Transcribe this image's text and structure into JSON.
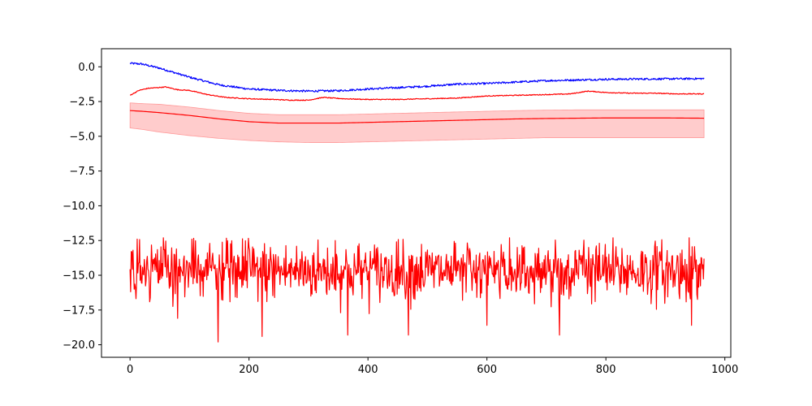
{
  "chart_data": {
    "type": "line",
    "title": "",
    "xlabel": "",
    "ylabel": "",
    "xlim": [
      -48,
      1010
    ],
    "ylim": [
      -20.9,
      1.3
    ],
    "grid": false,
    "legend": "none",
    "x_ticks": [
      0,
      200,
      400,
      600,
      800,
      1000
    ],
    "x_tick_labels": [
      "0",
      "200",
      "400",
      "600",
      "800",
      "1000"
    ],
    "y_ticks": [
      0,
      -2.5,
      -5,
      -7.5,
      -10,
      -12.5,
      -15,
      -17.5,
      -20
    ],
    "y_tick_labels": [
      "0.0",
      "−2.5",
      "−5.0",
      "−7.5",
      "−10.0",
      "−12.5",
      "−15.0",
      "−17.5",
      "−20.0"
    ],
    "series": [
      {
        "color": "#0000ff",
        "x": [
          0,
          20,
          50,
          100,
          150,
          200,
          250,
          300,
          350,
          400,
          450,
          500,
          550,
          600,
          650,
          700,
          750,
          800,
          850,
          900,
          965
        ],
        "y": [
          0.25,
          0.2,
          -0.1,
          -0.75,
          -1.3,
          -1.6,
          -1.7,
          -1.75,
          -1.72,
          -1.6,
          -1.5,
          -1.4,
          -1.25,
          -1.2,
          -1.1,
          -1.0,
          -0.95,
          -0.9,
          -0.88,
          -0.87,
          -0.85
        ],
        "noise": 0.07
      },
      {
        "color": "#ff0000",
        "x": [
          0,
          15,
          30,
          45,
          60,
          80,
          100,
          130,
          160,
          200,
          240,
          270,
          300,
          325,
          340,
          360,
          400,
          450,
          500,
          550,
          600,
          650,
          700,
          740,
          770,
          800,
          840,
          880,
          920,
          965
        ],
        "y": [
          -2.05,
          -1.7,
          -1.55,
          -1.5,
          -1.45,
          -1.65,
          -1.7,
          -2.0,
          -2.2,
          -2.3,
          -2.35,
          -2.4,
          -2.4,
          -2.2,
          -2.25,
          -2.3,
          -2.35,
          -2.35,
          -2.3,
          -2.25,
          -2.1,
          -2.05,
          -2.0,
          -1.95,
          -1.75,
          -1.85,
          -1.9,
          -1.9,
          -1.95,
          -1.95
        ],
        "noise": 0.03
      },
      {
        "color": "#ff0000",
        "x": [
          0,
          20,
          50,
          100,
          150,
          200,
          250,
          300,
          350,
          400,
          450,
          500,
          550,
          600,
          650,
          700,
          750,
          800,
          850,
          900,
          965
        ],
        "y": [
          -3.15,
          -3.2,
          -3.3,
          -3.5,
          -3.75,
          -3.95,
          -4.05,
          -4.05,
          -4.05,
          -4.0,
          -3.95,
          -3.9,
          -3.85,
          -3.8,
          -3.75,
          -3.72,
          -3.7,
          -3.68,
          -3.68,
          -3.68,
          -3.7
        ],
        "band_lower": [
          -4.4,
          -4.5,
          -4.7,
          -4.95,
          -5.15,
          -5.3,
          -5.4,
          -5.45,
          -5.45,
          -5.4,
          -5.35,
          -5.3,
          -5.25,
          -5.2,
          -5.15,
          -5.1,
          -5.1,
          -5.1,
          -5.1,
          -5.1,
          -5.1
        ],
        "band_upper": [
          -2.6,
          -2.65,
          -2.7,
          -2.9,
          -3.15,
          -3.35,
          -3.45,
          -3.45,
          -3.45,
          -3.4,
          -3.35,
          -3.3,
          -3.25,
          -3.2,
          -3.15,
          -3.12,
          -3.1,
          -3.1,
          -3.1,
          -3.1,
          -3.1
        ],
        "band_color": "#ffcccc"
      },
      {
        "color": "#ff0000",
        "x_start": 0,
        "x_end": 965,
        "count": 966,
        "mean": -14.7,
        "spread": 1.05,
        "min": -19.8,
        "max": -12.3,
        "spikes": [
          {
            "x": 148,
            "y": -19.8
          },
          {
            "x": 222,
            "y": -19.4
          },
          {
            "x": 366,
            "y": -19.3
          },
          {
            "x": 468,
            "y": -19.3
          },
          {
            "x": 722,
            "y": -19.3
          },
          {
            "x": 600,
            "y": -18.6
          },
          {
            "x": 944,
            "y": -18.6
          },
          {
            "x": 12,
            "y": -12.4
          },
          {
            "x": 56,
            "y": -12.3
          },
          {
            "x": 345,
            "y": -12.5
          },
          {
            "x": 638,
            "y": -12.3
          },
          {
            "x": 940,
            "y": -12.3
          }
        ]
      }
    ]
  }
}
